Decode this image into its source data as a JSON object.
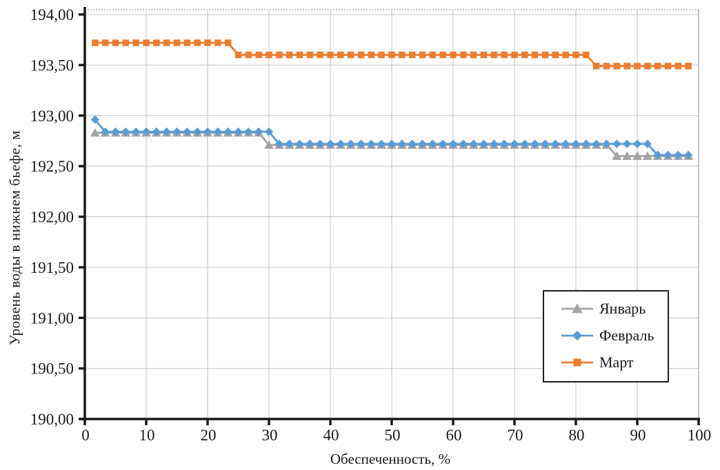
{
  "chart_data": {
    "type": "line",
    "title": "",
    "xlabel": "Обеспеченность, %",
    "ylabel": "Уровень воды в нижнем бьефе, м",
    "xlim": [
      0,
      100
    ],
    "ylim": [
      190.0,
      194.0
    ],
    "grid": true,
    "legend_position": "inside-lower-right",
    "colors": {
      "axis": "#1a1a1a",
      "grid": "#bfc2cb",
      "background": "#ffffff"
    },
    "x_ticks": [
      0,
      10,
      20,
      30,
      40,
      50,
      60,
      70,
      80,
      90,
      100
    ],
    "x_tick_labels": [
      "0",
      "10",
      "20",
      "30",
      "40",
      "50",
      "60",
      "70",
      "80",
      "90",
      "100"
    ],
    "y_ticks": [
      190.0,
      190.5,
      191.0,
      191.5,
      192.0,
      192.5,
      193.0,
      193.5,
      194.0
    ],
    "y_tick_labels": [
      "190,00",
      "190,50",
      "191,00",
      "191,50",
      "192,00",
      "192,50",
      "193,00",
      "193,50",
      "194,00"
    ],
    "x": [
      1.67,
      3.33,
      5,
      6.67,
      8.33,
      10,
      11.67,
      13.33,
      15,
      16.67,
      18.33,
      20,
      21.67,
      23.33,
      25,
      26.67,
      28.33,
      30,
      31.67,
      33.33,
      35,
      36.67,
      38.33,
      40,
      41.67,
      43.33,
      45,
      46.67,
      48.33,
      50,
      51.67,
      53.33,
      55,
      56.67,
      58.33,
      60,
      61.67,
      63.33,
      65,
      66.67,
      68.33,
      70,
      71.67,
      73.33,
      75,
      76.67,
      78.33,
      80,
      81.67,
      83.33,
      85,
      86.67,
      88.33,
      90,
      91.67,
      93.33,
      95,
      96.67,
      98.33
    ],
    "series": [
      {
        "key": "january",
        "name": "Январь",
        "color": "#A5A5A5",
        "marker": "triangle",
        "values": [
          192.83,
          192.83,
          192.83,
          192.83,
          192.83,
          192.83,
          192.83,
          192.83,
          192.83,
          192.83,
          192.83,
          192.83,
          192.83,
          192.83,
          192.83,
          192.83,
          192.83,
          192.71,
          192.71,
          192.71,
          192.71,
          192.71,
          192.71,
          192.71,
          192.71,
          192.71,
          192.71,
          192.71,
          192.71,
          192.71,
          192.71,
          192.71,
          192.71,
          192.71,
          192.71,
          192.71,
          192.71,
          192.71,
          192.71,
          192.71,
          192.71,
          192.71,
          192.71,
          192.71,
          192.71,
          192.71,
          192.71,
          192.71,
          192.71,
          192.71,
          192.71,
          192.6,
          192.6,
          192.6,
          192.6,
          192.6,
          192.6,
          192.6,
          192.6
        ]
      },
      {
        "key": "february",
        "name": "Февраль",
        "color": "#5B9BD5",
        "marker": "diamond",
        "values": [
          192.96,
          192.84,
          192.84,
          192.84,
          192.84,
          192.84,
          192.84,
          192.84,
          192.84,
          192.84,
          192.84,
          192.84,
          192.84,
          192.84,
          192.84,
          192.84,
          192.84,
          192.84,
          192.72,
          192.72,
          192.72,
          192.72,
          192.72,
          192.72,
          192.72,
          192.72,
          192.72,
          192.72,
          192.72,
          192.72,
          192.72,
          192.72,
          192.72,
          192.72,
          192.72,
          192.72,
          192.72,
          192.72,
          192.72,
          192.72,
          192.72,
          192.72,
          192.72,
          192.72,
          192.72,
          192.72,
          192.72,
          192.72,
          192.72,
          192.72,
          192.72,
          192.72,
          192.72,
          192.72,
          192.72,
          192.61,
          192.61,
          192.61,
          192.61
        ]
      },
      {
        "key": "march",
        "name": "Март",
        "color": "#ED7D31",
        "marker": "square",
        "values": [
          193.72,
          193.72,
          193.72,
          193.72,
          193.72,
          193.72,
          193.72,
          193.72,
          193.72,
          193.72,
          193.72,
          193.72,
          193.72,
          193.72,
          193.6,
          193.6,
          193.6,
          193.6,
          193.6,
          193.6,
          193.6,
          193.6,
          193.6,
          193.6,
          193.6,
          193.6,
          193.6,
          193.6,
          193.6,
          193.6,
          193.6,
          193.6,
          193.6,
          193.6,
          193.6,
          193.6,
          193.6,
          193.6,
          193.6,
          193.6,
          193.6,
          193.6,
          193.6,
          193.6,
          193.6,
          193.6,
          193.6,
          193.6,
          193.6,
          193.49,
          193.49,
          193.49,
          193.49,
          193.49,
          193.49,
          193.49,
          193.49,
          193.49,
          193.49
        ]
      }
    ]
  }
}
